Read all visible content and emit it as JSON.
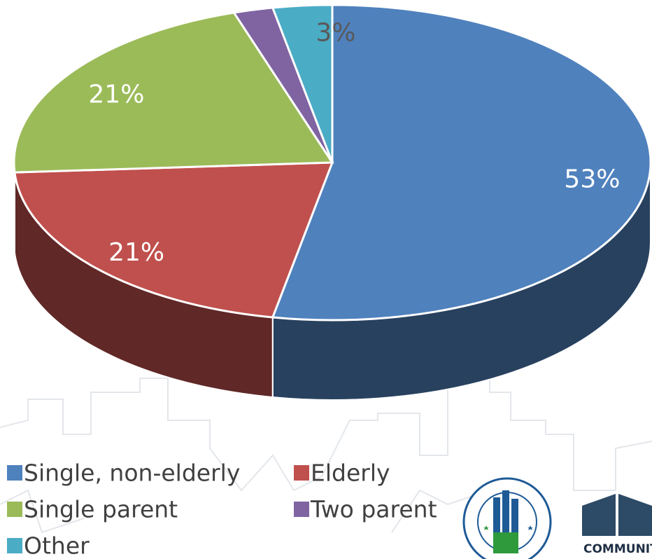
{
  "chart_data": {
    "type": "pie3d",
    "categories": [
      "Single, non-elderly",
      "Elderly",
      "Single parent",
      "Two parent",
      "Other"
    ],
    "values": [
      53,
      21,
      21,
      2,
      3
    ],
    "value_labels": [
      "53%",
      "21%",
      "21%",
      null,
      "3%"
    ],
    "colors": [
      "#4f81bd",
      "#c0504d",
      "#9bbb59",
      "#8064a2",
      "#4bacc6"
    ],
    "legend": "bottom-left"
  },
  "logo": {
    "text": "COMMUNIT"
  }
}
